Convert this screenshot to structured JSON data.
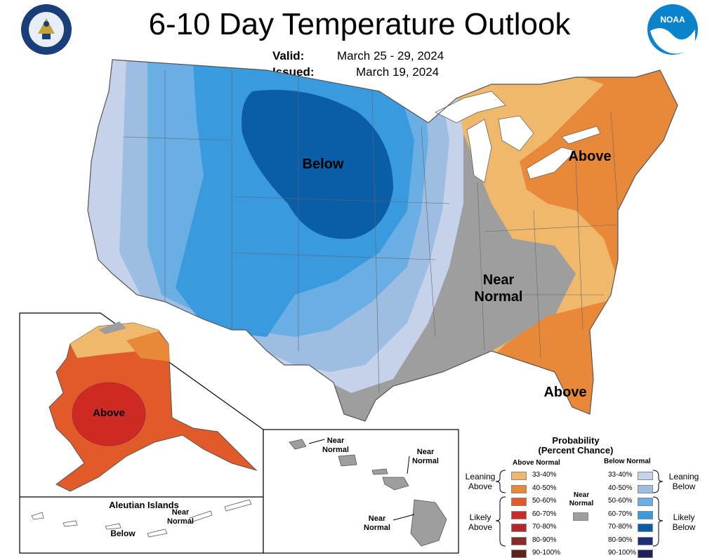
{
  "header": {
    "title": "6-10 Day Temperature Outlook",
    "valid_label": "Valid:",
    "valid_value": "March 25 - 29, 2024",
    "issued_label": "Issued:",
    "issued_value": "March 19, 2024"
  },
  "logos": {
    "left_icon": "department-of-commerce-seal",
    "right_icon": "noaa-logo",
    "right_text": "NOAA"
  },
  "map_labels": {
    "conus_below": "Below",
    "conus_above_ne": "Above",
    "conus_near_normal_1": "Near",
    "conus_near_normal_2": "Normal",
    "conus_above_se": "Above",
    "alaska_above": "Above",
    "aleutian_title": "Aleutian Islands",
    "aleutian_below": "Below",
    "aleutian_near_1": "Near",
    "aleutian_near_2": "Normal",
    "hawaii_near_a_1": "Near",
    "hawaii_near_a_2": "Normal",
    "hawaii_near_b_1": "Near",
    "hawaii_near_b_2": "Normal",
    "hawaii_near_c_1": "Near",
    "hawaii_near_c_2": "Normal"
  },
  "legend": {
    "title_1": "Probability",
    "title_2": "(Percent Chance)",
    "above_head": "Above Normal",
    "below_head": "Below Normal",
    "near_1": "Near",
    "near_2": "Normal",
    "leaning_above_1": "Leaning",
    "leaning_above_2": "Above",
    "likely_above_1": "Likely",
    "likely_above_2": "Above",
    "leaning_below_1": "Leaning",
    "leaning_below_2": "Below",
    "likely_below_1": "Likely",
    "likely_below_2": "Below",
    "above": [
      {
        "range": "33-40%",
        "color": "#f0b86a"
      },
      {
        "range": "40-50%",
        "color": "#e8893a"
      },
      {
        "range": "50-60%",
        "color": "#e05a2a"
      },
      {
        "range": "60-70%",
        "color": "#cc2a22"
      },
      {
        "range": "70-80%",
        "color": "#b8242a"
      },
      {
        "range": "80-90%",
        "color": "#8a2a2a"
      },
      {
        "range": "90-100%",
        "color": "#5a2418"
      }
    ],
    "below": [
      {
        "range": "33-40%",
        "color": "#c6d2ea"
      },
      {
        "range": "40-50%",
        "color": "#9dbde2"
      },
      {
        "range": "50-60%",
        "color": "#6aafe4"
      },
      {
        "range": "60-70%",
        "color": "#3a9ade"
      },
      {
        "range": "70-80%",
        "color": "#0a5ea8"
      },
      {
        "range": "80-90%",
        "color": "#1e2d78"
      },
      {
        "range": "90-100%",
        "color": "#20205a"
      }
    ],
    "near_color": "#9e9e9e"
  }
}
